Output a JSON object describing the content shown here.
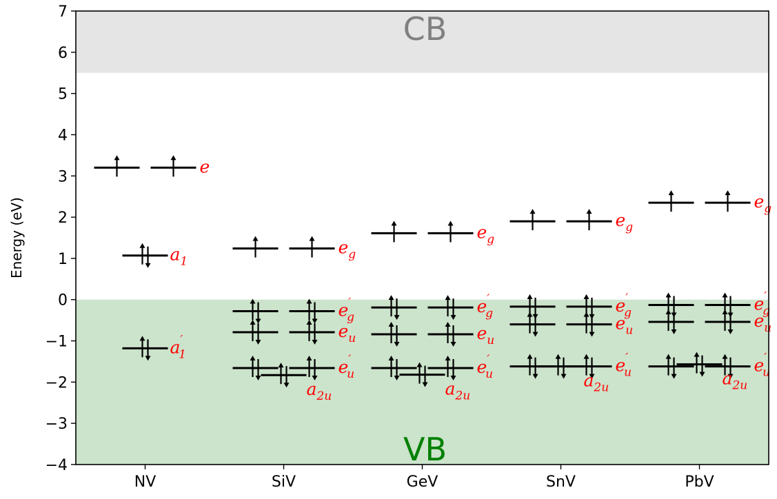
{
  "chart_data": {
    "type": "energy-level-diagram",
    "ylabel": "Energy (eV)",
    "ylim": [
      -4,
      7
    ],
    "yticks": [
      7,
      6,
      5,
      4,
      3,
      2,
      1,
      0,
      -1,
      -2,
      -3,
      -4
    ],
    "ytick_labels": [
      "7",
      "6",
      "5",
      "4",
      "3",
      "2",
      "1",
      "0",
      "−1",
      "−2",
      "−3",
      "−4"
    ],
    "categories": [
      "NV",
      "SiV",
      "GeV",
      "SnV",
      "PbV"
    ],
    "bands": [
      {
        "name": "CB",
        "from": 5.5,
        "to": 7,
        "fill": "#e5e5e5",
        "text_color": "#808080"
      },
      {
        "name": "VB",
        "from": -4,
        "to": 0,
        "fill": "#cce3cc",
        "text_color": "#008000"
      }
    ],
    "levels": [
      {
        "category": "NV",
        "pair": true,
        "energy": 3.2,
        "occupancy": "up",
        "label": "e",
        "sub": "",
        "prime": false
      },
      {
        "category": "NV",
        "pair": false,
        "energy": 1.07,
        "occupancy": "pair",
        "label": "a",
        "sub": "1",
        "prime": false
      },
      {
        "category": "NV",
        "pair": false,
        "energy": -1.18,
        "occupancy": "pair",
        "label": "a",
        "sub": "1",
        "prime": true
      },
      {
        "category": "SiV",
        "pair": true,
        "energy": 1.24,
        "occupancy": "up",
        "label": "e",
        "sub": "g",
        "prime": false
      },
      {
        "category": "SiV",
        "pair": true,
        "energy": -0.28,
        "occupancy": "pair",
        "label": "e",
        "sub": "g",
        "prime": true
      },
      {
        "category": "SiV",
        "pair": true,
        "energy": -0.79,
        "occupancy": "pair",
        "label": "e",
        "sub": "u",
        "prime": false
      },
      {
        "category": "SiV",
        "pair": true,
        "energy": -1.66,
        "occupancy": "pair",
        "label": "e",
        "sub": "u",
        "prime": true
      },
      {
        "category": "SiV",
        "pair": false,
        "energy": -1.83,
        "occupancy": "pair",
        "label": "a",
        "sub": "2u",
        "prime": false
      },
      {
        "category": "GeV",
        "pair": true,
        "energy": 1.61,
        "occupancy": "up",
        "label": "e",
        "sub": "g",
        "prime": false
      },
      {
        "category": "GeV",
        "pair": true,
        "energy": -0.19,
        "occupancy": "pair",
        "label": "e",
        "sub": "g",
        "prime": true
      },
      {
        "category": "GeV",
        "pair": true,
        "energy": -0.84,
        "occupancy": "pair",
        "label": "e",
        "sub": "u",
        "prime": false
      },
      {
        "category": "GeV",
        "pair": true,
        "energy": -1.66,
        "occupancy": "pair",
        "label": "e",
        "sub": "u",
        "prime": true
      },
      {
        "category": "GeV",
        "pair": false,
        "energy": -1.82,
        "occupancy": "pair",
        "label": "a",
        "sub": "2u",
        "prime": false
      },
      {
        "category": "SnV",
        "pair": true,
        "energy": 1.9,
        "occupancy": "up",
        "label": "e",
        "sub": "g",
        "prime": false
      },
      {
        "category": "SnV",
        "pair": true,
        "energy": -0.17,
        "occupancy": "pair",
        "label": "e",
        "sub": "g",
        "prime": true
      },
      {
        "category": "SnV",
        "pair": true,
        "energy": -0.6,
        "occupancy": "pair",
        "label": "e",
        "sub": "u",
        "prime": false
      },
      {
        "category": "SnV",
        "pair": true,
        "energy": -1.62,
        "occupancy": "pair",
        "label": "e",
        "sub": "u",
        "prime": true
      },
      {
        "category": "SnV",
        "pair": false,
        "energy": -1.62,
        "occupancy": "pair",
        "label": "a",
        "sub": "2u",
        "prime": false
      },
      {
        "category": "PbV",
        "pair": true,
        "energy": 2.35,
        "occupancy": "up",
        "label": "e",
        "sub": "g",
        "prime": false
      },
      {
        "category": "PbV",
        "pair": true,
        "energy": -0.13,
        "occupancy": "pair",
        "label": "e",
        "sub": "g",
        "prime": true
      },
      {
        "category": "PbV",
        "pair": true,
        "energy": -0.54,
        "occupancy": "pair",
        "label": "e",
        "sub": "u",
        "prime": false
      },
      {
        "category": "PbV",
        "pair": true,
        "energy": -1.62,
        "occupancy": "pair",
        "label": "e",
        "sub": "u",
        "prime": true
      },
      {
        "category": "PbV",
        "pair": false,
        "energy": -1.57,
        "occupancy": "pair",
        "label": "a",
        "sub": "2u",
        "prime": false
      }
    ],
    "colors": {
      "level": "#000000",
      "label": "#ff0000"
    }
  }
}
